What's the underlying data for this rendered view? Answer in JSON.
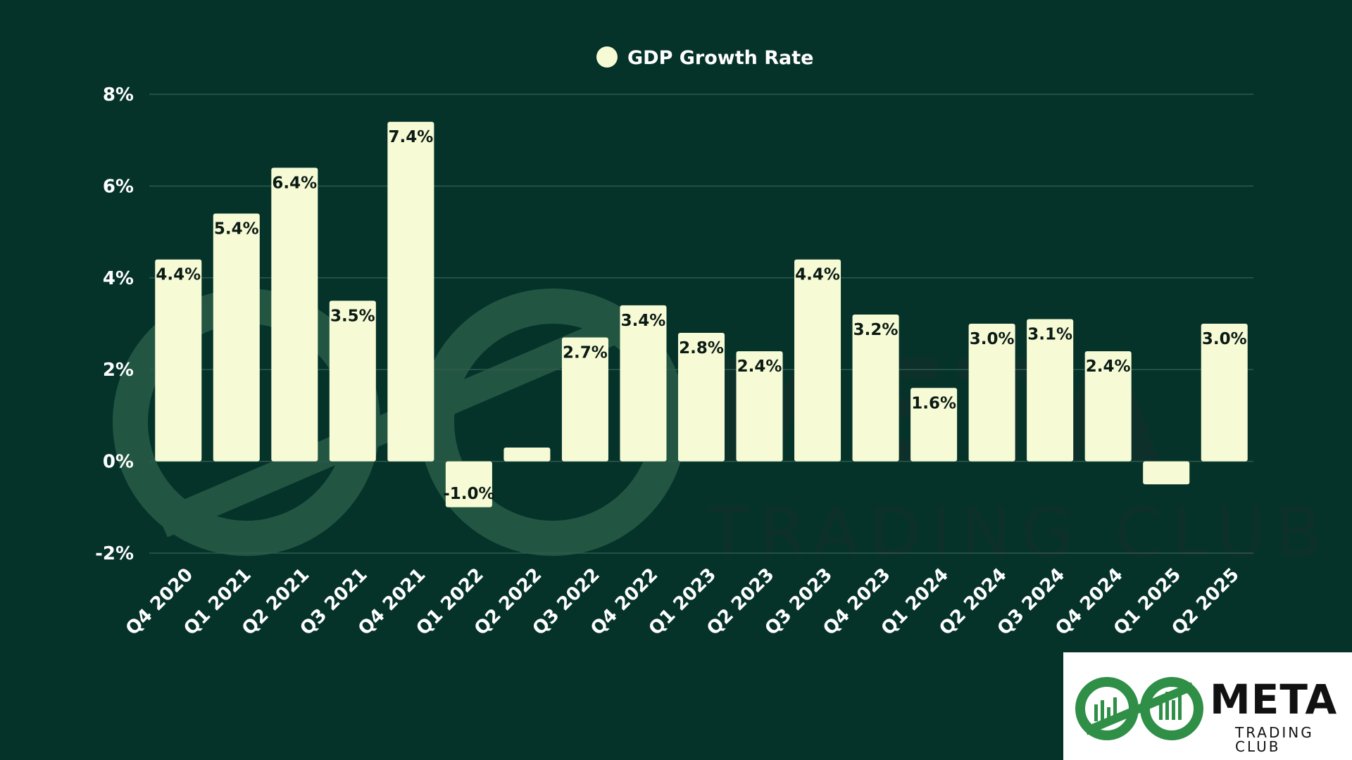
{
  "colors": {
    "background": "#05332a",
    "bar": "#f6fbd6",
    "grid": "#2f5a4c",
    "text": "#ffffff",
    "value_label": "#0b1a14",
    "logo_green": "#2f8f46"
  },
  "legend": {
    "label": "GDP Growth Rate"
  },
  "watermark": {
    "brand": "META",
    "tagline": "TRADING CLUB"
  },
  "logo": {
    "brand": "META",
    "tagline": "TRADING CLUB"
  },
  "chart_data": {
    "type": "bar",
    "categories": [
      "Q4 2020",
      "Q1 2021",
      "Q2 2021",
      "Q3 2021",
      "Q4 2021",
      "Q1 2022",
      "Q2 2022",
      "Q3 2022",
      "Q4 2022",
      "Q1 2023",
      "Q2 2023",
      "Q3 2023",
      "Q4 2023",
      "Q1 2024",
      "Q2 2024",
      "Q3 2024",
      "Q4 2024",
      "Q1 2025",
      "Q2 2025"
    ],
    "series": [
      {
        "name": "GDP Growth Rate",
        "values": [
          4.4,
          5.4,
          6.4,
          3.5,
          7.4,
          -1.0,
          0.3,
          2.7,
          3.4,
          2.8,
          2.4,
          4.4,
          3.2,
          1.6,
          3.0,
          3.1,
          2.4,
          -0.5,
          3.0
        ],
        "labels": [
          "4.4%",
          "5.4%",
          "6.4%",
          "3.5%",
          "7.4%",
          "-1.0%",
          "",
          "2.7%",
          "3.4%",
          "2.8%",
          "2.4%",
          "4.4%",
          "3.2%",
          "1.6%",
          "3.0%",
          "3.1%",
          "2.4%",
          "",
          "3.0%"
        ]
      }
    ],
    "yticks": [
      -2,
      0,
      2,
      4,
      6,
      8
    ],
    "ytick_labels": [
      "-2%",
      "0%",
      "2%",
      "4%",
      "6%",
      "8%"
    ],
    "ylim": [
      -2,
      8
    ],
    "grid": true,
    "legend_position": "top-center"
  }
}
